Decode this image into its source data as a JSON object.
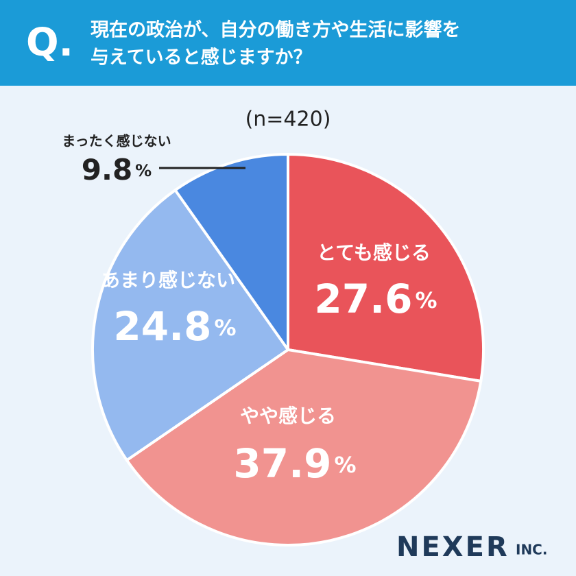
{
  "header": {
    "q_mark": "Q.",
    "title_lines": [
      "現在の政治が、自分の働き方や生活に影響を",
      "与えていると感じますか？"
    ]
  },
  "chart_data": {
    "type": "pie",
    "subtitle": "(n=420)",
    "categories": [
      "とても感じる",
      "やや感じる",
      "あまり感じない",
      "まったく感じない"
    ],
    "values": [
      27.6,
      37.9,
      24.8,
      9.8
    ],
    "value_labels": [
      "27.6%",
      "37.9%",
      "24.8%",
      "9.8%"
    ],
    "colors": [
      "#e9545a",
      "#f19390",
      "#94b9ef",
      "#4a88e0"
    ]
  },
  "brand": {
    "name": "NEXER",
    "suffix": "INC."
  }
}
